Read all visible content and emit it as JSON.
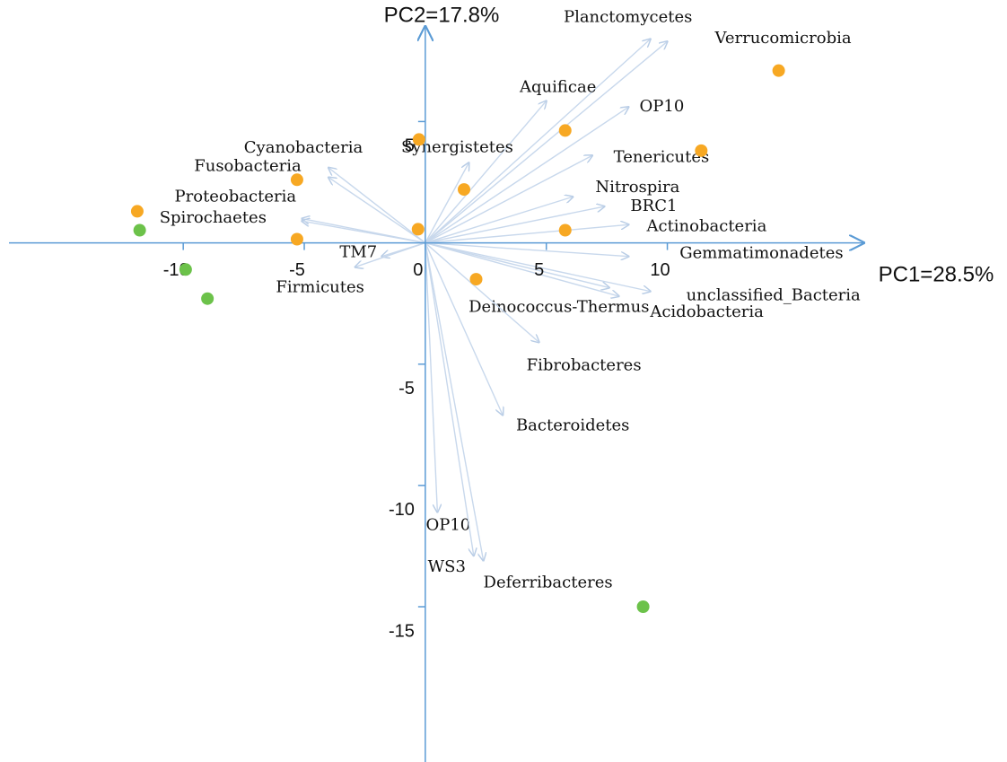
{
  "chart_data": {
    "type": "biplot",
    "xlabel": "PC1=28.5%",
    "ylabel": "PC2=17.8%",
    "xlim": [
      -17.2,
      18.1
    ],
    "ylim": [
      -21.4,
      8.9
    ],
    "xticks": [
      -10,
      -5,
      0,
      5,
      10
    ],
    "yticks": [
      -15,
      -10,
      -5,
      5
    ],
    "axis_color": "#5b9bd5",
    "arrow_color": "#c8d8ec",
    "groups": [
      {
        "color": "#f7a823",
        "x": [
          -0.26,
          5.78,
          14.6,
          11.4,
          -5.3,
          1.6,
          -11.9,
          -0.3,
          -5.3,
          5.78,
          2.1
        ],
        "y": [
          4.26,
          4.63,
          7.1,
          3.8,
          2.6,
          2.2,
          1.3,
          0.56,
          0.15,
          0.52,
          -1.5
        ]
      },
      {
        "color": "#6cc24a",
        "x": [
          -11.8,
          -9.9,
          -9.0,
          9.0
        ],
        "y": [
          0.52,
          -1.1,
          -2.3,
          -15.0
        ]
      }
    ],
    "loadings": [
      {
        "label": "Planctomycetes",
        "x": 9.3,
        "y": 8.4
      },
      {
        "label": "Verrucomicrobia",
        "x": 10.0,
        "y": 8.3
      },
      {
        "label": "Aquificae",
        "x": 5.0,
        "y": 5.85
      },
      {
        "label": "OP10",
        "x": 8.4,
        "y": 5.6
      },
      {
        "label": "Synergistetes",
        "x": 1.8,
        "y": 3.3
      },
      {
        "label": "Tenericutes",
        "x": 6.9,
        "y": 3.6
      },
      {
        "label": "Cyanobacteria",
        "x": -4.0,
        "y": 3.1
      },
      {
        "label": "Fusobacteria",
        "x": -4.0,
        "y": 2.7
      },
      {
        "label": "Nitrospira",
        "x": 6.1,
        "y": 1.9
      },
      {
        "label": "BRC1",
        "x": 7.4,
        "y": 1.5
      },
      {
        "label": "Proteobacteria",
        "x": -5.1,
        "y": 1.0
      },
      {
        "label": "Spirochaetes",
        "x": -5.1,
        "y": 0.9
      },
      {
        "label": "Actinobacteria",
        "x": 8.4,
        "y": 0.75
      },
      {
        "label": "Gemmatimonadetes",
        "x": 8.4,
        "y": -0.56
      },
      {
        "label": "TM7",
        "x": -1.8,
        "y": -0.56
      },
      {
        "label": "Firmicutes",
        "x": -2.9,
        "y": -1.0
      },
      {
        "label": "unclassified_Bacteria",
        "x": 9.3,
        "y": -2.0
      },
      {
        "label": "Acidobacteria",
        "x": 8.0,
        "y": -2.2
      },
      {
        "label": "Deinococcus-Thermus",
        "x": 7.6,
        "y": -1.85
      },
      {
        "label": "Fibrobacteres",
        "x": 4.7,
        "y": -4.1
      },
      {
        "label": "Bacteroidetes",
        "x": 3.2,
        "y": -7.1
      },
      {
        "label": "OP10",
        "x": 0.5,
        "y": -11.1
      },
      {
        "label": "WS3",
        "x": 2.0,
        "y": -12.9
      },
      {
        "label": "Deferribacteres",
        "x": 2.4,
        "y": -13.1
      }
    ]
  }
}
